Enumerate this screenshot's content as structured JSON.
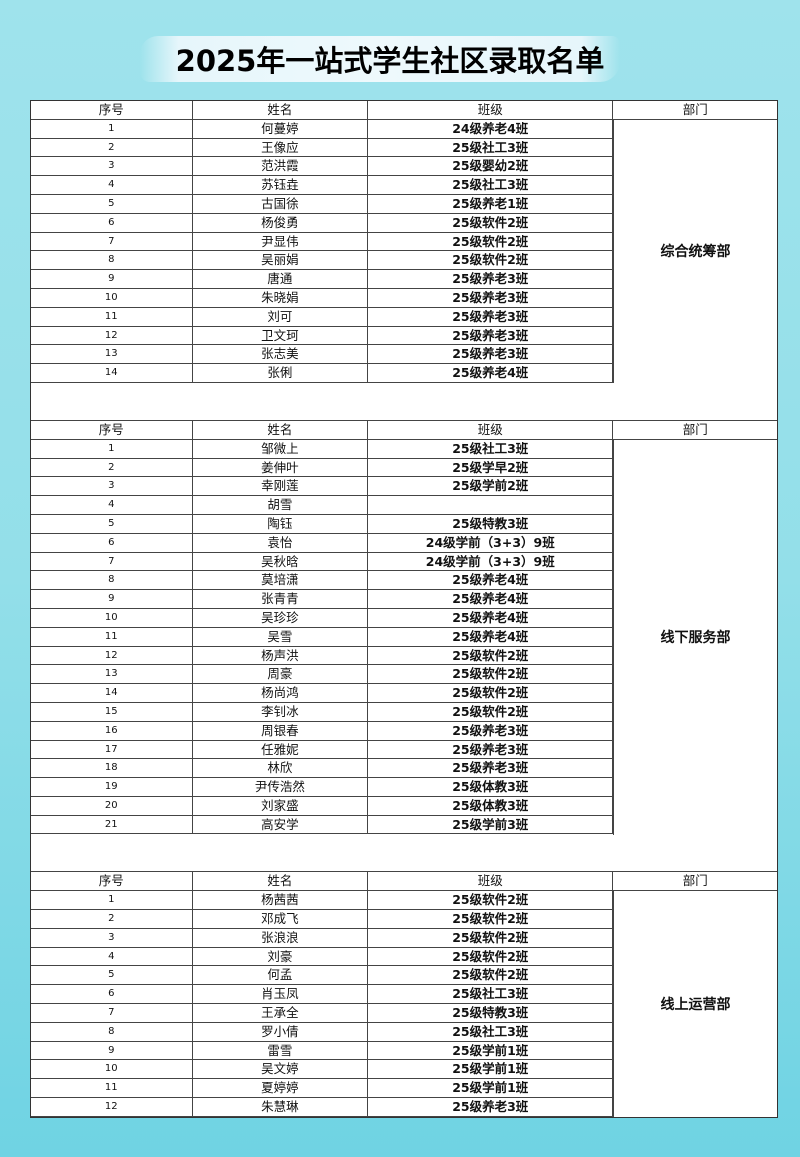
{
  "title": "2025年一站式学生社区录取名单",
  "headers": {
    "no": "序号",
    "name": "姓名",
    "class": "班级",
    "dept": "部门"
  },
  "colors": {
    "background_top": "#9fe3ec",
    "background_bottom": "#6fd3e3"
  },
  "sections": [
    {
      "department": "综合统筹部",
      "rows": [
        {
          "no": "1",
          "name": "何蔓婷",
          "class": "24级养老4班"
        },
        {
          "no": "2",
          "name": "王像应",
          "class": "25级社工3班"
        },
        {
          "no": "3",
          "name": "范洪霞",
          "class": "25级婴幼2班"
        },
        {
          "no": "4",
          "name": "苏钰垚",
          "class": "25级社工3班"
        },
        {
          "no": "5",
          "name": "古国徐",
          "class": "25级养老1班"
        },
        {
          "no": "6",
          "name": "杨俊勇",
          "class": "25级软件2班"
        },
        {
          "no": "7",
          "name": "尹显伟",
          "class": "25级软件2班"
        },
        {
          "no": "8",
          "name": "吴丽娟",
          "class": "25级软件2班"
        },
        {
          "no": "9",
          "name": "唐通",
          "class": "25级养老3班"
        },
        {
          "no": "10",
          "name": "朱晓娟",
          "class": "25级养老3班"
        },
        {
          "no": "11",
          "name": "刘可",
          "class": "25级养老3班"
        },
        {
          "no": "12",
          "name": "卫文珂",
          "class": "25级养老3班"
        },
        {
          "no": "13",
          "name": "张志美",
          "class": "25级养老3班"
        },
        {
          "no": "14",
          "name": "张俐",
          "class": "25级养老4班"
        }
      ]
    },
    {
      "department": "线下服务部",
      "rows": [
        {
          "no": "1",
          "name": "邹微上",
          "class": "25级社工3班"
        },
        {
          "no": "2",
          "name": "姜伸叶",
          "class": "25级学早2班"
        },
        {
          "no": "3",
          "name": "幸刚莲",
          "class": "25级学前2班"
        },
        {
          "no": "4",
          "name": "胡雪",
          "class": ""
        },
        {
          "no": "5",
          "name": "陶钰",
          "class": "25级特教3班"
        },
        {
          "no": "6",
          "name": "袁怡",
          "class": "24级学前（3+3）9班"
        },
        {
          "no": "7",
          "name": "吴秋晗",
          "class": "24级学前（3+3）9班"
        },
        {
          "no": "8",
          "name": "莫培潇",
          "class": "25级养老4班"
        },
        {
          "no": "9",
          "name": "张青青",
          "class": "25级养老4班"
        },
        {
          "no": "10",
          "name": "吴珍珍",
          "class": "25级养老4班"
        },
        {
          "no": "11",
          "name": "吴雪",
          "class": "25级养老4班"
        },
        {
          "no": "12",
          "name": "杨声洪",
          "class": "25级软件2班"
        },
        {
          "no": "13",
          "name": "周豪",
          "class": "25级软件2班"
        },
        {
          "no": "14",
          "name": "杨尚鸿",
          "class": "25级软件2班"
        },
        {
          "no": "15",
          "name": "李钊冰",
          "class": "25级软件2班"
        },
        {
          "no": "16",
          "name": "周银春",
          "class": "25级养老3班"
        },
        {
          "no": "17",
          "name": "任雅妮",
          "class": "25级养老3班"
        },
        {
          "no": "18",
          "name": "林欣",
          "class": "25级养老3班"
        },
        {
          "no": "19",
          "name": "尹传浩然",
          "class": "25级体教3班"
        },
        {
          "no": "20",
          "name": "刘家盛",
          "class": "25级体教3班"
        },
        {
          "no": "21",
          "name": "高安学",
          "class": "25级学前3班"
        }
      ]
    },
    {
      "department": "线上运营部",
      "rows": [
        {
          "no": "1",
          "name": "杨茜茜",
          "class": "25级软件2班"
        },
        {
          "no": "2",
          "name": "邓成飞",
          "class": "25级软件2班"
        },
        {
          "no": "3",
          "name": "张浪浪",
          "class": "25级软件2班"
        },
        {
          "no": "4",
          "name": "刘豪",
          "class": "25级软件2班"
        },
        {
          "no": "5",
          "name": "何孟",
          "class": "25级软件2班"
        },
        {
          "no": "6",
          "name": "肖玉凤",
          "class": "25级社工3班"
        },
        {
          "no": "7",
          "name": "王承全",
          "class": "25级特教3班"
        },
        {
          "no": "8",
          "name": "罗小倩",
          "class": "25级社工3班"
        },
        {
          "no": "9",
          "name": "雷雪",
          "class": "25级学前1班"
        },
        {
          "no": "10",
          "name": "吴文婷",
          "class": "25级学前1班"
        },
        {
          "no": "11",
          "name": "夏婷婷",
          "class": "25级学前1班"
        },
        {
          "no": "12",
          "name": "朱慧琳",
          "class": "25级养老3班"
        }
      ]
    }
  ]
}
